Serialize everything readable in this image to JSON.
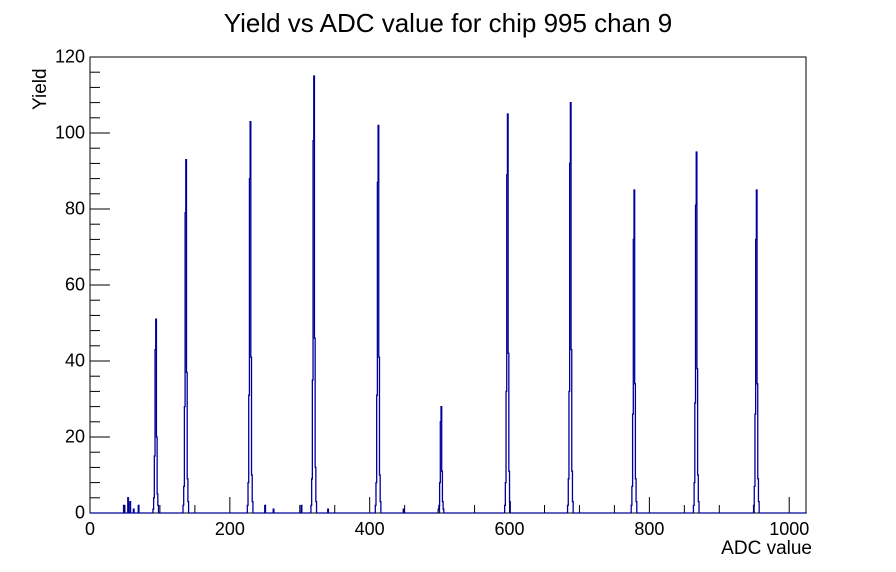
{
  "title": "Yield vs ADC value for chip 995 chan 9",
  "chart_data": {
    "type": "bar",
    "title": "Yield vs ADC value for chip 995 chan 9",
    "xlabel": "ADC value",
    "ylabel": "Yield",
    "xlim": [
      0,
      1024
    ],
    "ylim": [
      0,
      120
    ],
    "x_major_ticks": [
      0,
      200,
      400,
      600,
      800,
      1000
    ],
    "x_minor_step": 50,
    "y_major_ticks": [
      0,
      20,
      40,
      60,
      80,
      100,
      120
    ],
    "y_minor_step": 4,
    "grid": false,
    "legend": false,
    "line_color": "#000099",
    "axis_color": "#000000",
    "background_color": "#ffffff",
    "peaks": [
      {
        "adc": 94,
        "yield": 51
      },
      {
        "adc": 137,
        "yield": 93
      },
      {
        "adc": 229,
        "yield": 103
      },
      {
        "adc": 320,
        "yield": 115
      },
      {
        "adc": 412,
        "yield": 102
      },
      {
        "adc": 502,
        "yield": 28
      },
      {
        "adc": 597,
        "yield": 105
      },
      {
        "adc": 687,
        "yield": 108
      },
      {
        "adc": 778,
        "yield": 85
      },
      {
        "adc": 867,
        "yield": 95
      },
      {
        "adc": 953,
        "yield": 85
      }
    ],
    "noise_bars": [
      {
        "adc": 48,
        "yield": 2
      },
      {
        "adc": 54,
        "yield": 4
      },
      {
        "adc": 57,
        "yield": 3
      },
      {
        "adc": 62,
        "yield": 1
      },
      {
        "adc": 69,
        "yield": 2
      },
      {
        "adc": 250,
        "yield": 2
      },
      {
        "adc": 262,
        "yield": 1
      },
      {
        "adc": 302,
        "yield": 2
      },
      {
        "adc": 340,
        "yield": 1
      },
      {
        "adc": 448,
        "yield": 1
      }
    ],
    "peak_profile": {
      "offsets": [
        -4,
        -3,
        -2,
        -1,
        0,
        1,
        2,
        3
      ],
      "fractions": [
        0.02,
        0.08,
        0.3,
        0.85,
        1.0,
        0.4,
        0.1,
        0.03
      ]
    }
  }
}
